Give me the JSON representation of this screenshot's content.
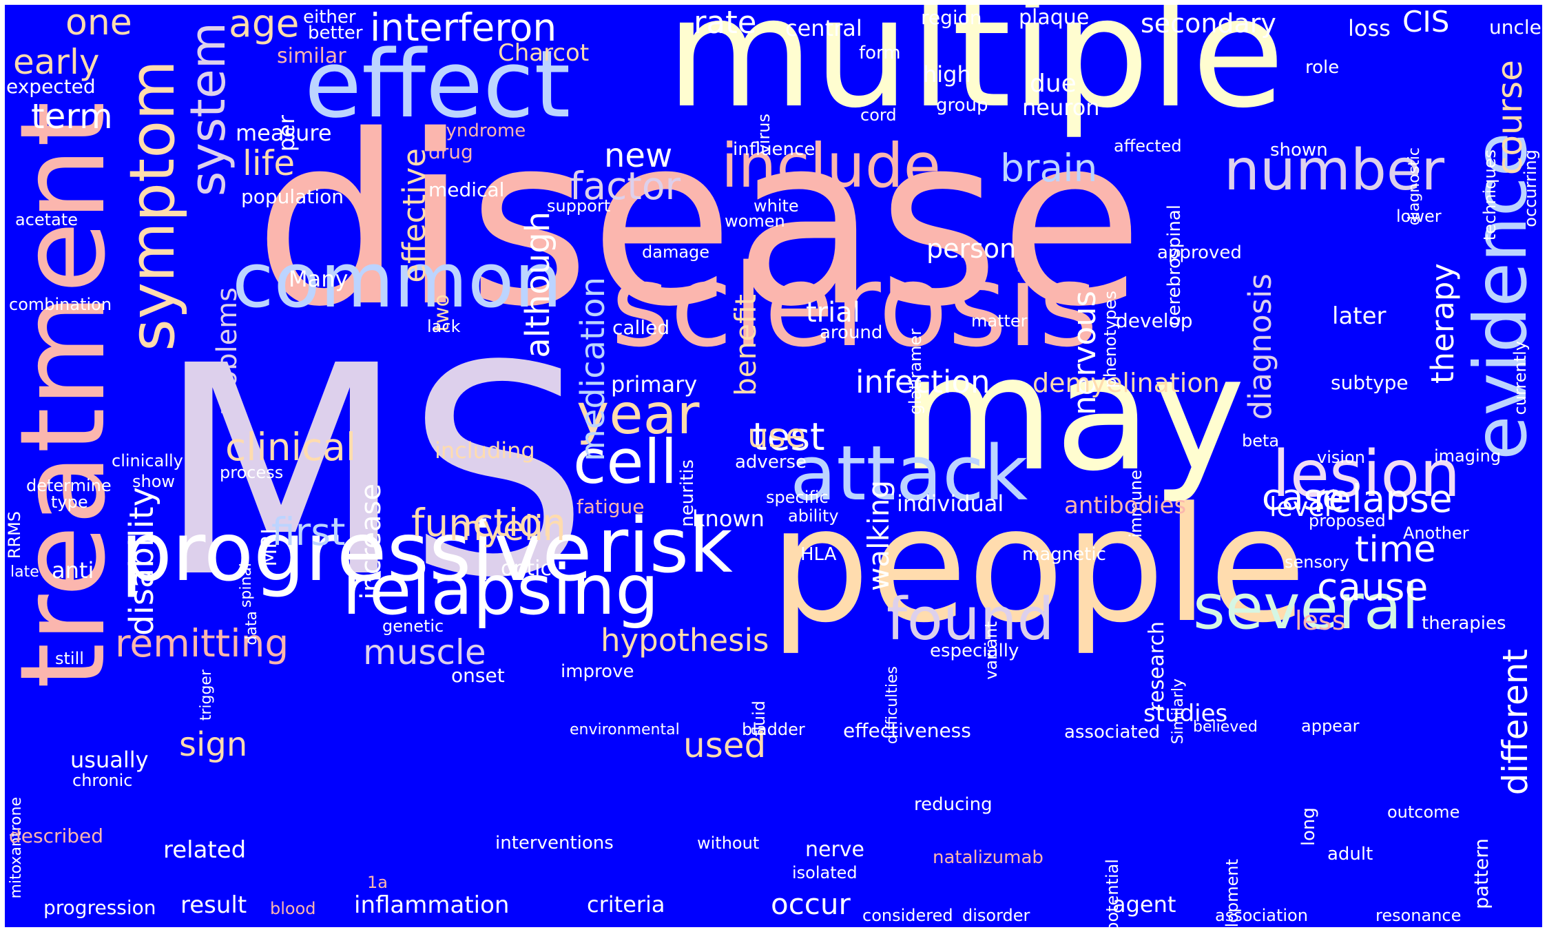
{
  "background": "#0000ff",
  "palette": {
    "pink": "#fbb6ae",
    "cream": "#fffdd0",
    "peach": "#ffdcae",
    "blue": "#bcd4ff",
    "lavender": "#ddd0ec",
    "white": "#ffffff",
    "mint": "#d5f6e4",
    "lilac": "#f1dcf5"
  },
  "words": [
    {
      "text": "disease",
      "color": "pink"
    },
    {
      "text": "MS",
      "color": "lavender"
    },
    {
      "text": "multiple",
      "color": "cream"
    },
    {
      "text": "people",
      "color": "peach"
    },
    {
      "text": "may",
      "color": "cream"
    },
    {
      "text": "treatment",
      "color": "pink"
    },
    {
      "text": "sclerosis",
      "color": "pink"
    },
    {
      "text": "effect",
      "color": "blue"
    },
    {
      "text": "progressive",
      "color": "white"
    },
    {
      "text": "common",
      "color": "blue"
    },
    {
      "text": "attack",
      "color": "blue"
    },
    {
      "text": "relapsing",
      "color": "white"
    },
    {
      "text": "symptom",
      "color": "peach"
    },
    {
      "text": "evidence",
      "color": "blue"
    },
    {
      "text": "include",
      "color": "pink"
    },
    {
      "text": "risk",
      "color": "white"
    },
    {
      "text": "lesion",
      "color": "lilac"
    },
    {
      "text": "several",
      "color": "mint"
    },
    {
      "text": "number",
      "color": "lavender"
    },
    {
      "text": "cell",
      "color": "white"
    },
    {
      "text": "found",
      "color": "lavender"
    },
    {
      "text": "system",
      "color": "lavender"
    },
    {
      "text": "year",
      "color": "peach"
    },
    {
      "text": "interferon",
      "color": "white"
    },
    {
      "text": "remitting",
      "color": "pink"
    },
    {
      "text": "function",
      "color": "peach"
    },
    {
      "text": "first",
      "color": "blue"
    },
    {
      "text": "clinical",
      "color": "peach"
    },
    {
      "text": "myelin",
      "color": "peach"
    },
    {
      "text": "muscle",
      "color": "lavender"
    },
    {
      "text": "test",
      "color": "white"
    },
    {
      "text": "factor",
      "color": "lavender"
    },
    {
      "text": "brain",
      "color": "blue"
    },
    {
      "text": "relapse",
      "color": "white"
    },
    {
      "text": "cause",
      "color": "white"
    },
    {
      "text": "time",
      "color": "white"
    },
    {
      "text": "case",
      "color": "white"
    },
    {
      "text": "course",
      "color": "peach"
    },
    {
      "text": "different",
      "color": "white"
    },
    {
      "text": "disability",
      "color": "white"
    },
    {
      "text": "hypothesis",
      "color": "peach"
    },
    {
      "text": "early",
      "color": "peach"
    },
    {
      "text": "one",
      "color": "peach"
    },
    {
      "text": "age",
      "color": "peach"
    },
    {
      "text": "term",
      "color": "white"
    },
    {
      "text": "life",
      "color": "peach"
    },
    {
      "text": "new",
      "color": "white"
    },
    {
      "text": "medication",
      "color": "blue"
    },
    {
      "text": "although",
      "color": "white"
    },
    {
      "text": "effective",
      "color": "peach"
    },
    {
      "text": "benefit",
      "color": "peach"
    },
    {
      "text": "nervous",
      "color": "white"
    },
    {
      "text": "diagnosis",
      "color": "lavender"
    },
    {
      "text": "therapy",
      "color": "white"
    },
    {
      "text": "infection",
      "color": "white"
    },
    {
      "text": "demyelination",
      "color": "peach"
    },
    {
      "text": "use",
      "color": "peach"
    },
    {
      "text": "walking",
      "color": "white"
    },
    {
      "text": "used",
      "color": "peach"
    },
    {
      "text": "occur",
      "color": "white"
    },
    {
      "text": "sign",
      "color": "peach"
    },
    {
      "text": "increase",
      "color": "white"
    },
    {
      "text": "problems",
      "color": "lavender"
    },
    {
      "text": "trial",
      "color": "white"
    },
    {
      "text": "person",
      "color": "white"
    },
    {
      "text": "rate",
      "color": "white"
    },
    {
      "text": "central",
      "color": "white"
    },
    {
      "text": "secondary",
      "color": "white"
    },
    {
      "text": "plaque",
      "color": "white"
    },
    {
      "text": "loss",
      "color": "white"
    },
    {
      "text": "CIS",
      "color": "white"
    },
    {
      "text": "unclear",
      "color": "white"
    },
    {
      "text": "region",
      "color": "white"
    },
    {
      "text": "either",
      "color": "white"
    },
    {
      "text": "better",
      "color": "white"
    },
    {
      "text": "Charcot",
      "color": "peach"
    },
    {
      "text": "similar",
      "color": "pink"
    },
    {
      "text": "expected",
      "color": "white"
    },
    {
      "text": "measure",
      "color": "white"
    },
    {
      "text": "per",
      "color": "white"
    },
    {
      "text": "syndrome",
      "color": "pink"
    },
    {
      "text": "drug",
      "color": "pink"
    },
    {
      "text": "influence",
      "color": "white"
    },
    {
      "text": "medical",
      "color": "white"
    },
    {
      "text": "population",
      "color": "white"
    },
    {
      "text": "support",
      "color": "white"
    },
    {
      "text": "acetate",
      "color": "white"
    },
    {
      "text": "form",
      "color": "white"
    },
    {
      "text": "high",
      "color": "white"
    },
    {
      "text": "due",
      "color": "white"
    },
    {
      "text": "neuron",
      "color": "white"
    },
    {
      "text": "group",
      "color": "white"
    },
    {
      "text": "cord",
      "color": "white"
    },
    {
      "text": "virus",
      "color": "white"
    },
    {
      "text": "affected",
      "color": "white"
    },
    {
      "text": "shown",
      "color": "white"
    },
    {
      "text": "role",
      "color": "white"
    },
    {
      "text": "diagnostic",
      "color": "white"
    },
    {
      "text": "techniques",
      "color": "white"
    },
    {
      "text": "occurring",
      "color": "white"
    },
    {
      "text": "cerebrospinal",
      "color": "white"
    },
    {
      "text": "white",
      "color": "white"
    },
    {
      "text": "women",
      "color": "white"
    },
    {
      "text": "damage",
      "color": "white"
    },
    {
      "text": "approved",
      "color": "white"
    },
    {
      "text": "lower",
      "color": "white"
    },
    {
      "text": "currently",
      "color": "white"
    },
    {
      "text": "glatiramer",
      "color": "white"
    },
    {
      "text": "phenotypes",
      "color": "white"
    },
    {
      "text": "Many",
      "color": "white"
    },
    {
      "text": "two",
      "color": "peach"
    },
    {
      "text": "combination",
      "color": "white"
    },
    {
      "text": "lack",
      "color": "white"
    },
    {
      "text": "called",
      "color": "white"
    },
    {
      "text": "around",
      "color": "white"
    },
    {
      "text": "matter",
      "color": "white"
    },
    {
      "text": "develop",
      "color": "white"
    },
    {
      "text": "later",
      "color": "white"
    },
    {
      "text": "primary",
      "color": "white"
    },
    {
      "text": "subtype",
      "color": "white"
    },
    {
      "text": "clinically",
      "color": "white"
    },
    {
      "text": "including",
      "color": "peach"
    },
    {
      "text": "neuritis",
      "color": "white"
    },
    {
      "text": "immune",
      "color": "white"
    },
    {
      "text": "beta",
      "color": "white"
    },
    {
      "text": "vision",
      "color": "white"
    },
    {
      "text": "imaging",
      "color": "white"
    },
    {
      "text": "RRMS",
      "color": "white"
    },
    {
      "text": "determine",
      "color": "white"
    },
    {
      "text": "type",
      "color": "white"
    },
    {
      "text": "show",
      "color": "white"
    },
    {
      "text": "process",
      "color": "white"
    },
    {
      "text": "adverse",
      "color": "white"
    },
    {
      "text": "fatigue",
      "color": "pink"
    },
    {
      "text": "specific",
      "color": "white"
    },
    {
      "text": "ability",
      "color": "white"
    },
    {
      "text": "known",
      "color": "white"
    },
    {
      "text": "individual",
      "color": "white"
    },
    {
      "text": "antibodies",
      "color": "pink"
    },
    {
      "text": "level",
      "color": "white"
    },
    {
      "text": "proposed",
      "color": "white"
    },
    {
      "text": "Another",
      "color": "white"
    },
    {
      "text": "late",
      "color": "white"
    },
    {
      "text": "anti",
      "color": "white"
    },
    {
      "text": "spinal",
      "color": "white"
    },
    {
      "text": "data",
      "color": "white"
    },
    {
      "text": "MRI",
      "color": "white"
    },
    {
      "text": "optic",
      "color": "white"
    },
    {
      "text": "HLA",
      "color": "white"
    },
    {
      "text": "magnetic",
      "color": "white"
    },
    {
      "text": "variant",
      "color": "white"
    },
    {
      "text": "difficulties",
      "color": "white"
    },
    {
      "text": "sensory",
      "color": "white"
    },
    {
      "text": "genetic",
      "color": "white"
    },
    {
      "text": "research",
      "color": "white"
    },
    {
      "text": "Similarly",
      "color": "white"
    },
    {
      "text": "less",
      "color": "pink"
    },
    {
      "text": "therapies",
      "color": "white"
    },
    {
      "text": "still",
      "color": "white"
    },
    {
      "text": "trigger",
      "color": "white"
    },
    {
      "text": "onset",
      "color": "white"
    },
    {
      "text": "improve",
      "color": "white"
    },
    {
      "text": "fluid",
      "color": "white"
    },
    {
      "text": "especially",
      "color": "white"
    },
    {
      "text": "studies",
      "color": "white"
    },
    {
      "text": "mitoxantrone",
      "color": "white"
    },
    {
      "text": "environmental",
      "color": "white"
    },
    {
      "text": "bladder",
      "color": "white"
    },
    {
      "text": "effectiveness",
      "color": "white"
    },
    {
      "text": "associated",
      "color": "white"
    },
    {
      "text": "believed",
      "color": "white"
    },
    {
      "text": "appear",
      "color": "white"
    },
    {
      "text": "usually",
      "color": "white"
    },
    {
      "text": "chronic",
      "color": "white"
    },
    {
      "text": "development",
      "color": "white"
    },
    {
      "text": "long",
      "color": "white"
    },
    {
      "text": "pattern",
      "color": "white"
    },
    {
      "text": "reducing",
      "color": "white"
    },
    {
      "text": "potential",
      "color": "white"
    },
    {
      "text": "outcome",
      "color": "white"
    },
    {
      "text": "related",
      "color": "white"
    },
    {
      "text": "described",
      "color": "pink"
    },
    {
      "text": "interventions",
      "color": "white"
    },
    {
      "text": "without",
      "color": "white"
    },
    {
      "text": "nerve",
      "color": "white"
    },
    {
      "text": "natalizumab",
      "color": "pink"
    },
    {
      "text": "adult",
      "color": "white"
    },
    {
      "text": "isolated",
      "color": "white"
    },
    {
      "text": "1a",
      "color": "pink"
    },
    {
      "text": "progression",
      "color": "white"
    },
    {
      "text": "result",
      "color": "white"
    },
    {
      "text": "blood",
      "color": "pink"
    },
    {
      "text": "inflammation",
      "color": "white"
    },
    {
      "text": "criteria",
      "color": "white"
    },
    {
      "text": "considered",
      "color": "white"
    },
    {
      "text": "disorder",
      "color": "white"
    },
    {
      "text": "agent",
      "color": "white"
    },
    {
      "text": "association",
      "color": "white"
    },
    {
      "text": "resonance",
      "color": "white"
    }
  ]
}
